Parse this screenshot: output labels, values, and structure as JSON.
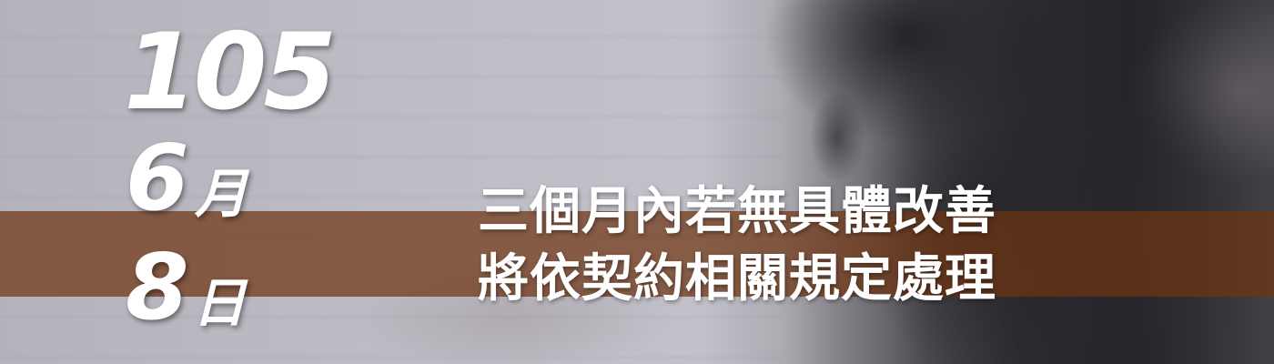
{
  "date": {
    "year": "105",
    "month_number": "6",
    "month_unit": "月",
    "day_number": "8",
    "day_unit": "日"
  },
  "headline": {
    "line1": "三個月內若無具體改善",
    "line2": "將依契約相關規定處理"
  },
  "colors": {
    "stripe": "#6f3414",
    "text": "#ffffff"
  }
}
